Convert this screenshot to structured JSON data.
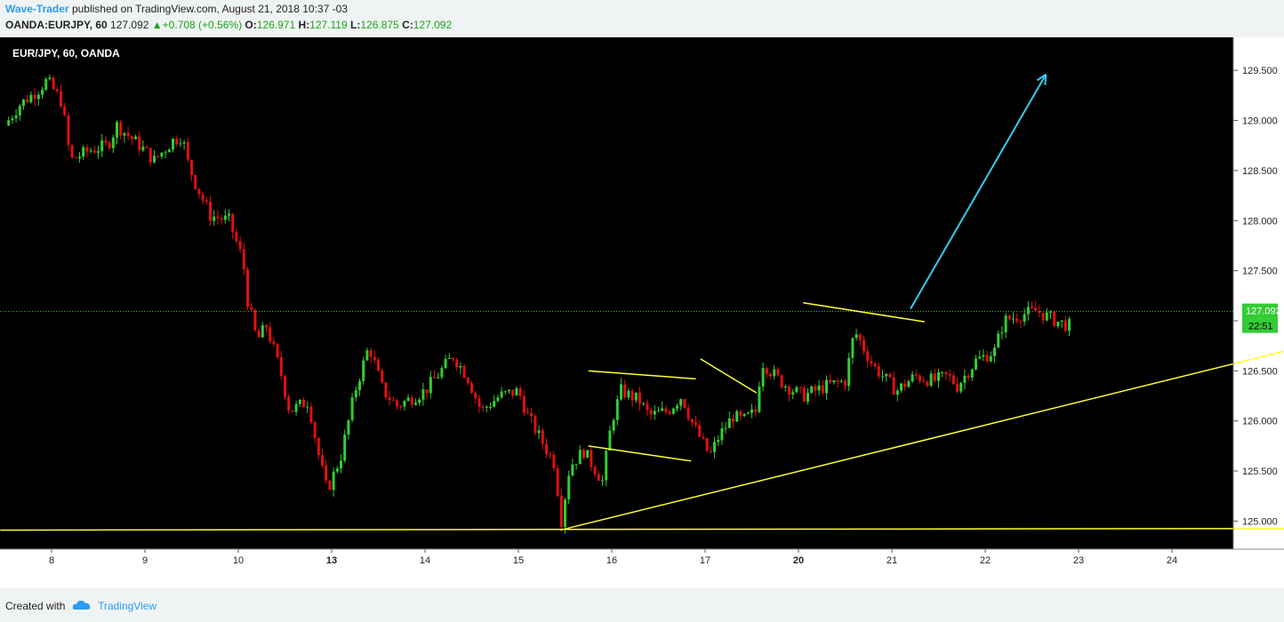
{
  "header": {
    "author": "Wave-Trader",
    "published_text": "published on TradingView.com, August 21, 2018 10:37 -03",
    "symbol": "OANDA:EURJPY, 60",
    "last": "127.092",
    "change": "+0.708 (+0.56%)",
    "o_label": "O:",
    "o_value": "126.971",
    "h_label": "H:",
    "h_value": "127.119",
    "l_label": "L:",
    "l_value": "126.875",
    "c_label": "C:",
    "c_value": "127.092"
  },
  "footer": {
    "created_with": "Created with",
    "brand": "TradingView"
  },
  "colors": {
    "background": "#000000",
    "up": "#33cc33",
    "down": "#e01010",
    "trendline": "#ffff33",
    "arrow": "#33ccee",
    "price_tag": "#33cc33"
  },
  "chart_data": {
    "type": "candlestick",
    "title": "EUR/JPY, 60, OANDA",
    "x_ticks": [
      "8",
      "9",
      "10",
      "13",
      "14",
      "15",
      "16",
      "17",
      "20",
      "21",
      "22",
      "23",
      "24"
    ],
    "y_ticks": [
      "125.000",
      "125.500",
      "126.000",
      "126.500",
      "127.000",
      "127.500",
      "128.000",
      "128.500",
      "129.000",
      "129.500"
    ],
    "ylim": [
      124.72,
      129.83
    ],
    "last_price_label": "127.092",
    "countdown_label": "22:51",
    "last_price": 127.092,
    "price_path": [
      [
        7.5,
        128.95
      ],
      [
        7.65,
        129.15
      ],
      [
        7.85,
        129.3
      ],
      [
        7.95,
        129.4
      ],
      [
        8.1,
        129.2
      ],
      [
        8.15,
        128.95
      ],
      [
        8.2,
        128.6
      ],
      [
        8.4,
        128.7
      ],
      [
        8.6,
        128.75
      ],
      [
        8.7,
        128.95
      ],
      [
        9.0,
        128.7
      ],
      [
        9.1,
        128.6
      ],
      [
        9.3,
        128.8
      ],
      [
        9.4,
        128.85
      ],
      [
        9.45,
        128.6
      ],
      [
        9.55,
        128.35
      ],
      [
        9.7,
        128.05
      ],
      [
        9.9,
        128.0
      ],
      [
        10.05,
        127.6
      ],
      [
        10.1,
        127.2
      ],
      [
        10.2,
        126.8
      ],
      [
        10.3,
        126.95
      ],
      [
        10.45,
        126.5
      ],
      [
        10.55,
        126.1
      ],
      [
        10.75,
        126.2
      ],
      [
        10.85,
        125.7
      ],
      [
        10.95,
        125.3
      ],
      [
        11.1,
        125.65
      ],
      [
        11.25,
        126.3
      ],
      [
        11.4,
        126.75
      ],
      [
        11.55,
        126.3
      ],
      [
        11.7,
        126.15
      ],
      [
        12.0,
        126.3
      ],
      [
        12.3,
        126.65
      ],
      [
        12.45,
        126.45
      ],
      [
        12.6,
        126.1
      ],
      [
        12.8,
        126.25
      ],
      [
        13.0,
        126.3
      ],
      [
        13.1,
        126.05
      ],
      [
        13.4,
        125.55
      ],
      [
        13.45,
        124.95
      ],
      [
        13.55,
        125.55
      ],
      [
        13.7,
        125.7
      ],
      [
        13.9,
        125.4
      ],
      [
        14.0,
        126.0
      ],
      [
        14.1,
        126.3
      ],
      [
        14.3,
        126.2
      ],
      [
        14.4,
        126.05
      ],
      [
        14.6,
        126.1
      ],
      [
        14.75,
        126.25
      ],
      [
        14.85,
        126.0
      ],
      [
        15.05,
        125.65
      ],
      [
        15.15,
        125.85
      ],
      [
        15.3,
        126.05
      ],
      [
        15.4,
        126.0
      ],
      [
        15.55,
        126.1
      ],
      [
        15.6,
        126.6
      ],
      [
        15.8,
        126.4
      ],
      [
        15.95,
        126.3
      ],
      [
        16.05,
        126.25
      ],
      [
        16.3,
        126.35
      ],
      [
        16.5,
        126.4
      ],
      [
        16.6,
        126.9
      ],
      [
        16.8,
        126.55
      ],
      [
        16.95,
        126.4
      ],
      [
        17.05,
        126.3
      ],
      [
        17.25,
        126.45
      ],
      [
        17.45,
        126.4
      ],
      [
        17.6,
        126.45
      ],
      [
        17.7,
        126.35
      ],
      [
        17.9,
        126.6
      ],
      [
        18.1,
        126.7
      ],
      [
        18.2,
        127.0
      ],
      [
        18.35,
        127.05
      ],
      [
        18.55,
        127.1
      ],
      [
        18.75,
        127.0
      ],
      [
        18.9,
        126.95
      ]
    ],
    "lines": [
      {
        "name": "support",
        "x": [
          7.45,
          24.65
        ],
        "y": [
          124.91,
          124.93
        ]
      },
      {
        "name": "rising-trendline",
        "x": [
          13.45,
          24.65
        ],
        "y": [
          124.91,
          127.49
        ]
      },
      {
        "name": "flag-top",
        "x": [
          13.75,
          14.9
        ],
        "y": [
          126.5,
          126.42
        ]
      },
      {
        "name": "flag-bottom",
        "x": [
          13.75,
          14.85
        ],
        "y": [
          125.75,
          125.6
        ]
      },
      {
        "name": "pennant",
        "x": [
          14.95,
          15.55
        ],
        "y": [
          126.62,
          126.28
        ]
      },
      {
        "name": "triangle-top",
        "x": [
          16.05,
          17.35
        ],
        "y": [
          127.18,
          126.99
        ]
      }
    ],
    "arrow": {
      "x": [
        17.2,
        18.65
      ],
      "y": [
        127.12,
        129.46
      ]
    }
  }
}
